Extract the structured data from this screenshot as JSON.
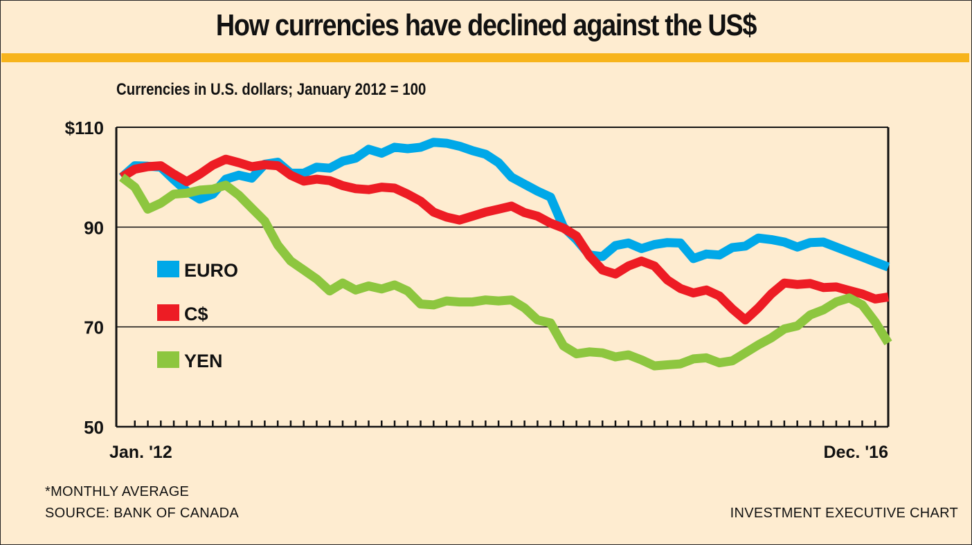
{
  "title": "How currencies have declined against the US$",
  "subtitle": "Currencies in U.S. dollars; January 2012 = 100",
  "footer": {
    "note": "*MONTHLY AVERAGE",
    "source": "SOURCE: BANK OF CANADA",
    "credit": "INVESTMENT EXECUTIVE CHART"
  },
  "colors": {
    "background": "#feecd0",
    "accent_bar": "#f7b41c",
    "euro": "#00a8e8",
    "cad": "#ed1c24",
    "yen": "#8dc63f"
  },
  "chart_data": {
    "type": "line",
    "title": "How currencies have declined against the US$",
    "subtitle": "Currencies in U.S. dollars; January 2012 = 100",
    "xlabel": "",
    "ylabel": "",
    "x_tick_labels": [
      "Jan. '12",
      "Dec. '16"
    ],
    "x_range": [
      "Jan 2012",
      "Dec 2016"
    ],
    "months": 60,
    "ylim": [
      50,
      110
    ],
    "y_ticks": [
      50,
      70,
      90,
      110
    ],
    "y_tick_labels": [
      "50",
      "70",
      "90",
      "$110"
    ],
    "gridlines": [
      70,
      90
    ],
    "legend_placement": "left-middle",
    "series": [
      {
        "name": "EURO",
        "color": "#00a8e8",
        "values": [
          100,
          102.3,
          102.2,
          102.0,
          99.5,
          97.2,
          95.6,
          96.6,
          99.6,
          100.4,
          99.8,
          102.6,
          103.0,
          100.8,
          100.8,
          102.0,
          101.8,
          103.2,
          103.8,
          105.6,
          104.8,
          106.0,
          105.7,
          106.0,
          107.0,
          106.8,
          106.2,
          105.3,
          104.6,
          102.9,
          100.0,
          98.6,
          97.2,
          96.0,
          90.0,
          87.5,
          84.4,
          84.1,
          86.3,
          86.8,
          85.7,
          86.5,
          86.9,
          86.8,
          83.7,
          84.6,
          84.4,
          85.9,
          86.2,
          87.8,
          87.5,
          87.0,
          86.0,
          86.9,
          87.0,
          86.0,
          85.0,
          84.0,
          83.0,
          82.0
        ]
      },
      {
        "name": "C$",
        "color": "#ed1c24",
        "values": [
          100,
          101.6,
          102.1,
          102.3,
          100.6,
          99.1,
          100.6,
          102.4,
          103.6,
          102.9,
          102.1,
          102.5,
          102.3,
          100.4,
          99.2,
          99.6,
          99.3,
          98.3,
          97.7,
          97.5,
          98.0,
          97.8,
          96.6,
          95.2,
          93.0,
          92.0,
          91.4,
          92.2,
          93.0,
          93.6,
          94.2,
          92.9,
          92.2,
          90.8,
          89.8,
          88.2,
          84.2,
          81.4,
          80.6,
          82.2,
          83.2,
          82.2,
          79.4,
          77.7,
          76.8,
          77.4,
          76.2,
          73.6,
          71.4,
          73.8,
          76.6,
          78.8,
          78.5,
          78.7,
          77.9,
          78.0,
          77.3,
          76.6,
          75.6,
          76.0
        ]
      },
      {
        "name": "YEN",
        "color": "#8dc63f",
        "values": [
          100,
          98.0,
          93.6,
          94.8,
          96.6,
          96.8,
          97.4,
          97.6,
          98.4,
          96.4,
          93.8,
          91.2,
          86.4,
          83.2,
          81.4,
          79.6,
          77.2,
          78.8,
          77.4,
          78.2,
          77.6,
          78.4,
          77.2,
          74.6,
          74.4,
          75.2,
          75.0,
          75.0,
          75.4,
          75.2,
          75.4,
          73.8,
          71.4,
          70.8,
          66.2,
          64.6,
          65.0,
          64.8,
          64.0,
          64.4,
          63.4,
          62.2,
          62.4,
          62.6,
          63.6,
          63.8,
          62.8,
          63.2,
          64.8,
          66.4,
          67.8,
          69.6,
          70.2,
          72.4,
          73.4,
          75.0,
          75.8,
          74.4,
          71.0,
          66.8
        ]
      }
    ]
  }
}
